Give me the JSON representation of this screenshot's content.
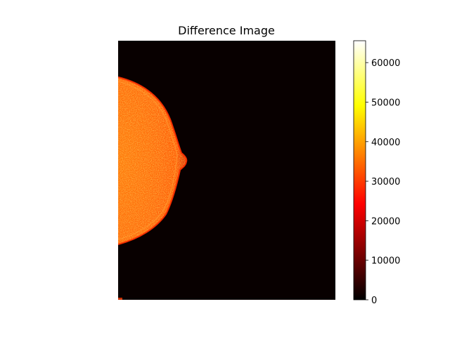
{
  "figure": {
    "title": "Difference Image"
  },
  "image": {
    "subject": "heatmap of a difference image showing a semicircular bright region against a dark background",
    "colormap": "hot",
    "background_color": "#080000"
  },
  "colorbar": {
    "min": 0,
    "max": 65535,
    "ticks": [
      {
        "value": 0,
        "label": "0"
      },
      {
        "value": 10000,
        "label": "10000"
      },
      {
        "value": 20000,
        "label": "20000"
      },
      {
        "value": 30000,
        "label": "30000"
      },
      {
        "value": 40000,
        "label": "40000"
      },
      {
        "value": 50000,
        "label": "50000"
      },
      {
        "value": 60000,
        "label": "60000"
      }
    ],
    "colors": [
      "#000000",
      "#ff0000",
      "#ffff00",
      "#ffffff"
    ]
  }
}
